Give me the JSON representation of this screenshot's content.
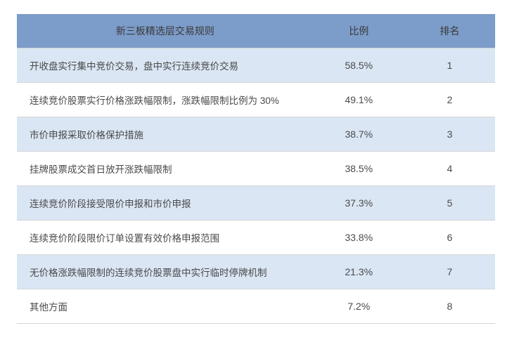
{
  "table": {
    "type": "table",
    "columns": [
      "新三板精选层交易规则",
      "比例",
      "排名"
    ],
    "column_widths_pct": [
      62,
      19,
      19
    ],
    "header_bg": "#7c9cc9",
    "header_text_color": "#3a3a3a",
    "row_odd_bg": "#dae6f4",
    "row_even_bg": "#ffffff",
    "border_color": "#d6d6d6",
    "text_color": "#4a4a4a",
    "font_size_body": 13.5,
    "font_size_header": 14,
    "rows": [
      {
        "rule": "开收盘实行集中竞价交易，盘中实行连续竞价交易",
        "pct": "58.5%",
        "rank": "1"
      },
      {
        "rule": "连续竞价股票实行价格涨跌幅限制，涨跌幅限制比例为 30%",
        "pct": "49.1%",
        "rank": "2"
      },
      {
        "rule": "市价申报采取价格保护措施",
        "pct": "38.7%",
        "rank": "3"
      },
      {
        "rule": "挂牌股票成交首日放开涨跌幅限制",
        "pct": "38.5%",
        "rank": "4"
      },
      {
        "rule": "连续竞价阶段接受限价申报和市价申报",
        "pct": "37.3%",
        "rank": "5"
      },
      {
        "rule": "连续竞价阶段限价订单设置有效价格申报范围",
        "pct": "33.8%",
        "rank": "6"
      },
      {
        "rule": "无价格涨跌幅限制的连续竞价股票盘中实行临时停牌机制",
        "pct": "21.3%",
        "rank": "7"
      },
      {
        "rule": "其他方面",
        "pct": "7.2%",
        "rank": "8"
      }
    ]
  }
}
